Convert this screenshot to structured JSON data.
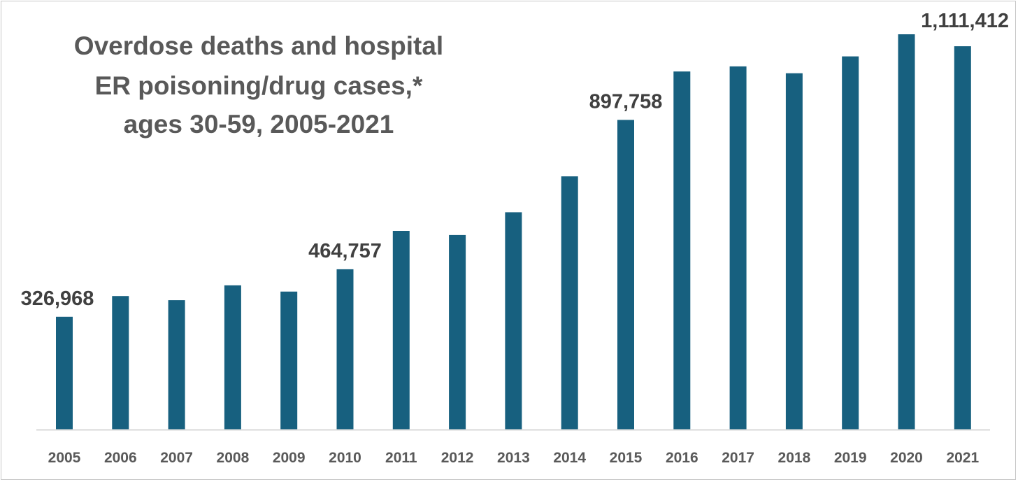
{
  "chart_data": {
    "type": "bar",
    "title_lines": [
      "Overdose deaths and hospital",
      "ER poisoning/drug cases,*",
      "ages 30-59,  2005-2021"
    ],
    "xlabel": "",
    "ylabel": "",
    "categories": [
      "2005",
      "2006",
      "2007",
      "2008",
      "2009",
      "2010",
      "2011",
      "2012",
      "2013",
      "2014",
      "2015",
      "2016",
      "2017",
      "2018",
      "2019",
      "2020",
      "2021"
    ],
    "values": [
      326968,
      387000,
      375000,
      418000,
      400000,
      464757,
      576000,
      564000,
      630000,
      734000,
      897758,
      1038000,
      1053000,
      1033000,
      1082000,
      1146000,
      1111412
    ],
    "data_labels": [
      {
        "category": "2005",
        "text": "326,968"
      },
      {
        "category": "2010",
        "text": "464,757"
      },
      {
        "category": "2015",
        "text": "897,758"
      },
      {
        "category": "2021",
        "text": "1,111,412"
      }
    ],
    "ylim": [
      0,
      1146000
    ],
    "grid": false,
    "legend": "none",
    "bar_color": "#17607f",
    "axis_color": "#d9d9d9"
  }
}
